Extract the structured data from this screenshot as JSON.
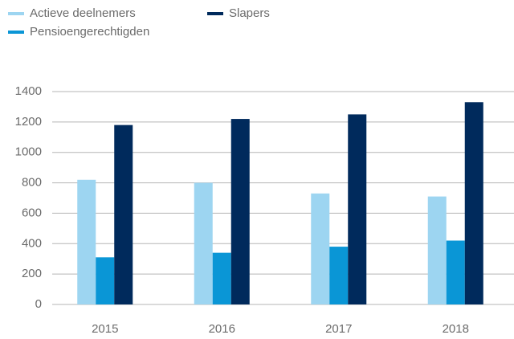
{
  "chart_data": {
    "type": "bar",
    "categories": [
      "2015",
      "2016",
      "2017",
      "2018"
    ],
    "series": [
      {
        "name": "Actieve deelnemers",
        "color": "#9dd5f1",
        "values": [
          820,
          800,
          730,
          710
        ]
      },
      {
        "name": "Pensioengerechtigden",
        "color": "#0a96d6",
        "values": [
          310,
          340,
          380,
          420
        ]
      },
      {
        "name": "Slapers",
        "color": "#002a5c",
        "values": [
          1180,
          1220,
          1250,
          1330
        ]
      }
    ],
    "ylim": [
      0,
      1400
    ],
    "yticks": [
      0,
      200,
      400,
      600,
      800,
      1000,
      1200,
      1400
    ],
    "grid": true,
    "legend": "top-left"
  }
}
